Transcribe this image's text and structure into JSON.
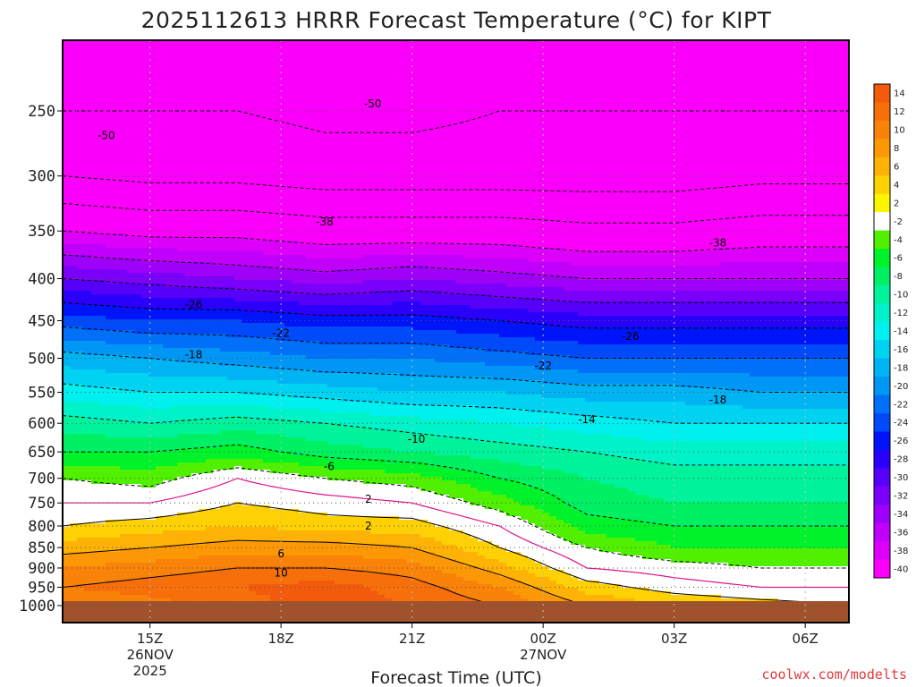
{
  "chart_data": {
    "type": "heatmap",
    "title": "2025112613 HRRR Forecast Temperature (°C) for KIPT",
    "xlabel": "Forecast Time (UTC)",
    "ylabel": "",
    "credit": "coolwx.com/modelts",
    "y_axis": {
      "scale": "log-pressure",
      "range": [
        1000,
        200
      ],
      "ticks": [
        250,
        300,
        350,
        400,
        450,
        500,
        550,
        600,
        650,
        700,
        750,
        800,
        850,
        900,
        950,
        1000
      ],
      "tick_labels": [
        "250",
        "300",
        "350",
        "400",
        "450",
        "500",
        "550",
        "600",
        "650",
        "700",
        "750",
        "800",
        "850",
        "900",
        "950",
        "1000"
      ]
    },
    "x_axis": {
      "range_hours": [
        13,
        31
      ],
      "ticks": [
        {
          "hour": 15,
          "label": "15Z",
          "date": "26NOV",
          "year": "2025"
        },
        {
          "hour": 18,
          "label": "18Z",
          "date": "",
          "year": ""
        },
        {
          "hour": 21,
          "label": "21Z",
          "date": "",
          "year": ""
        },
        {
          "hour": 24,
          "label": "00Z",
          "date": "27NOV",
          "year": ""
        },
        {
          "hour": 27,
          "label": "03Z",
          "date": "",
          "year": ""
        },
        {
          "hour": 30,
          "label": "06Z",
          "date": "",
          "year": ""
        }
      ]
    },
    "grid": true,
    "colorbar": {
      "placement": "right",
      "bins": [
        {
          "label": "14",
          "color": "#f25a0c"
        },
        {
          "label": "12",
          "color": "#f66f0a"
        },
        {
          "label": "10",
          "color": "#f98208"
        },
        {
          "label": "8",
          "color": "#fc9806"
        },
        {
          "label": "6",
          "color": "#fdb205"
        },
        {
          "label": "4",
          "color": "#fdd104"
        },
        {
          "label": "2",
          "color": "#fcf500"
        },
        {
          "label": "-2",
          "color": "#ffffff"
        },
        {
          "label": "-4",
          "color": "#50f000"
        },
        {
          "label": "-6",
          "color": "#00f22a"
        },
        {
          "label": "-8",
          "color": "#00f064"
        },
        {
          "label": "-10",
          "color": "#00f39a"
        },
        {
          "label": "-12",
          "color": "#00f3c8"
        },
        {
          "label": "-14",
          "color": "#00f0f0"
        },
        {
          "label": "-16",
          "color": "#00d2f2"
        },
        {
          "label": "-18",
          "color": "#00b4f4"
        },
        {
          "label": "-20",
          "color": "#0096f6"
        },
        {
          "label": "-22",
          "color": "#0070f8"
        },
        {
          "label": "-24",
          "color": "#004afa"
        },
        {
          "label": "-26",
          "color": "#0014fa"
        },
        {
          "label": "-28",
          "color": "#2a00fa"
        },
        {
          "label": "-30",
          "color": "#5600fa"
        },
        {
          "label": "-32",
          "color": "#7a00fa"
        },
        {
          "label": "-34",
          "color": "#9e00fa"
        },
        {
          "label": "-36",
          "color": "#c000fa"
        },
        {
          "label": "-38",
          "color": "#dc00fa"
        },
        {
          "label": "-40",
          "color": "#fa00fa"
        }
      ]
    },
    "ground_color": "#a0522d",
    "temperature_field": {
      "description_levels_hPa": [
        1000,
        950,
        900,
        850,
        800,
        750,
        700,
        650,
        600,
        550,
        500,
        450,
        400,
        350,
        300,
        250,
        200
      ],
      "profiles": [
        {
          "hour": 13,
          "temps": [
            8,
            10,
            8,
            5,
            2,
            0,
            -2,
            -6,
            -9,
            -13,
            -17,
            -23,
            -30,
            -38,
            -46,
            -50,
            -52
          ]
        },
        {
          "hour": 15,
          "temps": [
            9,
            11,
            9,
            6,
            3,
            0,
            -3,
            -6,
            -10,
            -14,
            -18,
            -24,
            -31,
            -39,
            -47,
            -50,
            -52
          ]
        },
        {
          "hour": 17,
          "temps": [
            11,
            12,
            10,
            7,
            4,
            2,
            0,
            -5,
            -9,
            -14,
            -19,
            -24,
            -32,
            -39,
            -47,
            -50,
            -52
          ]
        },
        {
          "hour": 19,
          "temps": [
            13,
            13,
            10,
            7,
            3,
            1,
            -2,
            -7,
            -10,
            -15,
            -20,
            -25,
            -33,
            -40,
            -48,
            -51,
            -52
          ]
        },
        {
          "hour": 21,
          "temps": [
            12,
            11,
            9,
            6,
            3,
            0,
            -3,
            -8,
            -11,
            -16,
            -20,
            -25,
            -32,
            -40,
            -48,
            -51,
            -52
          ]
        },
        {
          "hour": 23,
          "temps": [
            10,
            8,
            5,
            2,
            0,
            -3,
            -6,
            -9,
            -12,
            -16,
            -21,
            -26,
            -33,
            -40,
            -48,
            -50,
            -52
          ]
        },
        {
          "hour": 25,
          "temps": [
            6,
            3,
            0,
            -2,
            -5,
            -7,
            -8,
            -10,
            -13,
            -17,
            -22,
            -27,
            -34,
            -41,
            -48,
            -50,
            -52
          ]
        },
        {
          "hour": 27,
          "temps": [
            4,
            1,
            -1,
            -4,
            -6,
            -8,
            -9,
            -11,
            -14,
            -17,
            -22,
            -27,
            -34,
            -41,
            -48,
            -50,
            -52
          ]
        },
        {
          "hour": 29,
          "temps": [
            3,
            0,
            -2,
            -4,
            -6,
            -8,
            -9,
            -11,
            -14,
            -18,
            -22,
            -27,
            -34,
            -40,
            -47,
            -50,
            -52
          ]
        },
        {
          "hour": 31,
          "temps": [
            2,
            0,
            -2,
            -4,
            -6,
            -8,
            -9,
            -11,
            -14,
            -18,
            -22,
            -27,
            -34,
            -40,
            -47,
            -50,
            -52
          ]
        }
      ]
    },
    "contour_labels": [
      {
        "text": "-50",
        "hour": 14.0,
        "p": 268
      },
      {
        "text": "-50",
        "hour": 20.1,
        "p": 245
      },
      {
        "text": "-38",
        "hour": 19.0,
        "p": 341
      },
      {
        "text": "-38",
        "hour": 28.0,
        "p": 362
      },
      {
        "text": "-26",
        "hour": 16.0,
        "p": 430
      },
      {
        "text": "-26",
        "hour": 26.0,
        "p": 470
      },
      {
        "text": "-22",
        "hour": 18.0,
        "p": 466
      },
      {
        "text": "-22",
        "hour": 24.0,
        "p": 511
      },
      {
        "text": "-18",
        "hour": 16.0,
        "p": 495
      },
      {
        "text": "-18",
        "hour": 28.0,
        "p": 562
      },
      {
        "text": "-14",
        "hour": 25.0,
        "p": 594
      },
      {
        "text": "-10",
        "hour": 21.1,
        "p": 627
      },
      {
        "text": "-6",
        "hour": 19.1,
        "p": 677
      },
      {
        "text": "2",
        "hour": 20.0,
        "p": 742
      },
      {
        "text": "2",
        "hour": 20.0,
        "p": 800
      },
      {
        "text": "6",
        "hour": 18.0,
        "p": 865
      },
      {
        "text": "10",
        "hour": 18.0,
        "p": 913
      }
    ]
  }
}
